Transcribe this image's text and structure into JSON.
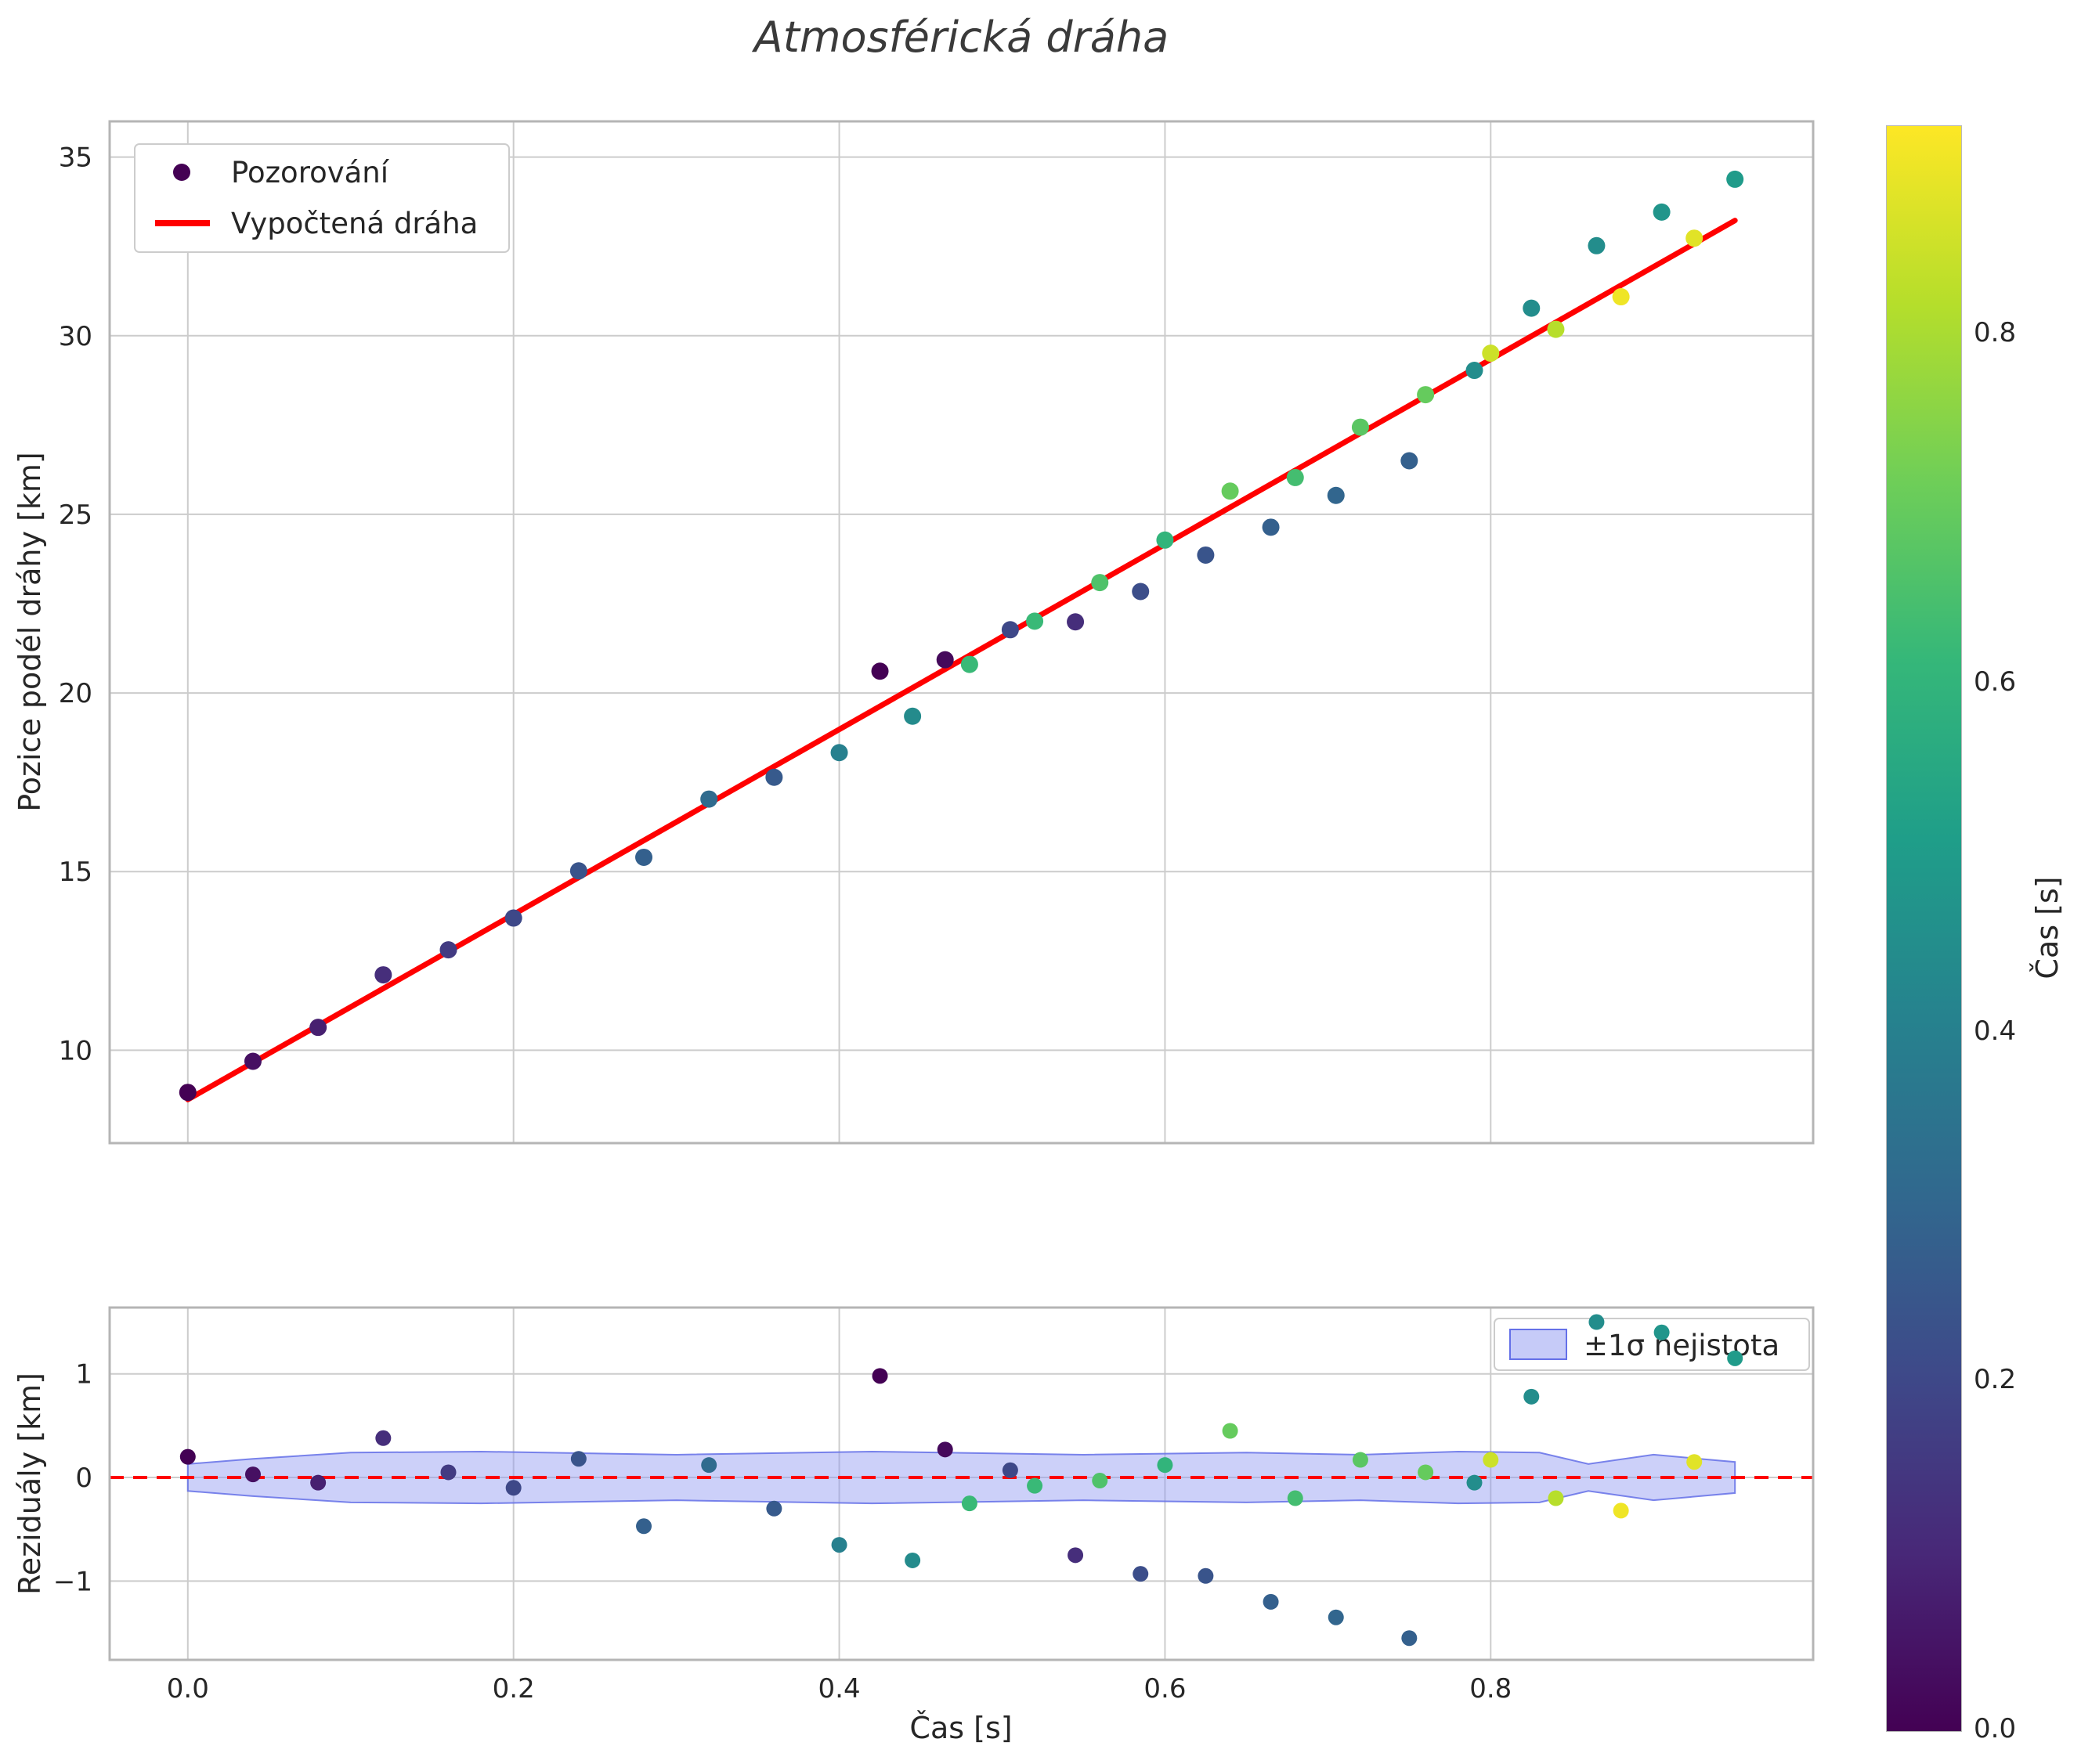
{
  "colorbar": {
    "label": "Čas [s]",
    "vmin": 0.0,
    "vmax": 0.92,
    "ticks": [
      0.0,
      0.2,
      0.4,
      0.6,
      0.8
    ]
  },
  "style": {
    "fit_line_color": "#ff0000",
    "zero_line_color": "#ff0000",
    "band_fill": "#8d97f2",
    "band_edge": "#6470e8",
    "grid_color": "#cccccc",
    "spine_color": "#b5b5b5",
    "legend_border": "#cccccc",
    "text_color": "#262626",
    "title_color": "#3a3a3a",
    "viridis": [
      "#440154",
      "#482878",
      "#3e4989",
      "#31688e",
      "#26828e",
      "#1f9e89",
      "#35b779",
      "#6ece58",
      "#b5de2b",
      "#fde725"
    ]
  },
  "chart_data": {
    "type": "scatter",
    "title": "Atmosférická dráha",
    "xlabel": "Čas [s]",
    "grid": true,
    "top": {
      "ylabel": "Pozice podél dráhy [km]",
      "points_label": "Pozorování",
      "fit_line": {
        "label": "Vypočtená dráha",
        "slope": 25.9,
        "intercept": 8.62,
        "t_range": [
          0.0,
          0.95
        ]
      },
      "xlim": [
        -0.048,
        0.998
      ],
      "ylim": [
        7.4,
        36.0
      ],
      "yticks": [
        10,
        15,
        20,
        25,
        30,
        35
      ],
      "xgrid": [
        0.0,
        0.2,
        0.4,
        0.6,
        0.8
      ],
      "legend_loc": "upper left"
    },
    "bottom": {
      "ylabel": "Reziduály [km]",
      "ylim": [
        -1.76,
        1.64
      ],
      "yticks": [
        -1,
        0,
        1
      ],
      "xticks": [
        0.0,
        0.2,
        0.4,
        0.6,
        0.8
      ],
      "zero_line": 0.0,
      "band": {
        "label": "±1σ nejistota",
        "t": [
          0.0,
          0.04,
          0.1,
          0.18,
          0.3,
          0.42,
          0.55,
          0.65,
          0.72,
          0.78,
          0.83,
          0.86,
          0.9,
          0.95
        ],
        "halfwidth": [
          0.13,
          0.18,
          0.24,
          0.25,
          0.22,
          0.25,
          0.22,
          0.24,
          0.22,
          0.25,
          0.24,
          0.13,
          0.22,
          0.15
        ]
      },
      "legend_loc": "upper right"
    },
    "points_columns": [
      "time_s",
      "position_km",
      "residual_km",
      "color_time_s"
    ],
    "points": [
      [
        0.0,
        8.82,
        0.2,
        0.0
      ],
      [
        0.04,
        9.69,
        0.03,
        0.04
      ],
      [
        0.08,
        10.64,
        -0.05,
        0.08
      ],
      [
        0.12,
        12.11,
        0.38,
        0.12
      ],
      [
        0.16,
        12.81,
        0.05,
        0.16
      ],
      [
        0.2,
        13.7,
        -0.1,
        0.2
      ],
      [
        0.24,
        15.02,
        0.18,
        0.24
      ],
      [
        0.28,
        15.4,
        -0.47,
        0.28
      ],
      [
        0.32,
        17.03,
        0.12,
        0.32
      ],
      [
        0.36,
        17.64,
        -0.3,
        0.26
      ],
      [
        0.4,
        18.33,
        -0.65,
        0.4
      ],
      [
        0.425,
        20.61,
        0.98,
        0.0
      ],
      [
        0.445,
        19.35,
        -0.8,
        0.44
      ],
      [
        0.465,
        20.93,
        0.27,
        0.02
      ],
      [
        0.48,
        20.8,
        -0.25,
        0.62
      ],
      [
        0.505,
        21.77,
        0.07,
        0.2
      ],
      [
        0.52,
        22.01,
        -0.08,
        0.62
      ],
      [
        0.545,
        21.99,
        -0.75,
        0.12
      ],
      [
        0.56,
        23.09,
        -0.03,
        0.66
      ],
      [
        0.585,
        22.84,
        -0.93,
        0.22
      ],
      [
        0.6,
        24.28,
        0.12,
        0.6
      ],
      [
        0.625,
        23.86,
        -0.95,
        0.24
      ],
      [
        0.64,
        25.65,
        0.45,
        0.7
      ],
      [
        0.665,
        24.64,
        -1.2,
        0.28
      ],
      [
        0.68,
        26.03,
        -0.2,
        0.64
      ],
      [
        0.705,
        25.53,
        -1.35,
        0.3
      ],
      [
        0.72,
        27.44,
        0.17,
        0.68
      ],
      [
        0.75,
        26.5,
        -1.55,
        0.28
      ],
      [
        0.76,
        28.35,
        0.05,
        0.7
      ],
      [
        0.79,
        29.03,
        -0.05,
        0.45
      ],
      [
        0.8,
        29.51,
        0.17,
        0.85
      ],
      [
        0.825,
        30.77,
        0.78,
        0.45
      ],
      [
        0.84,
        30.18,
        -0.2,
        0.82
      ],
      [
        0.865,
        32.52,
        1.5,
        0.45
      ],
      [
        0.88,
        31.09,
        -0.32,
        0.9
      ],
      [
        0.905,
        33.46,
        1.4,
        0.48
      ],
      [
        0.925,
        32.73,
        0.15,
        0.88
      ],
      [
        0.95,
        34.38,
        1.15,
        0.5
      ]
    ]
  }
}
